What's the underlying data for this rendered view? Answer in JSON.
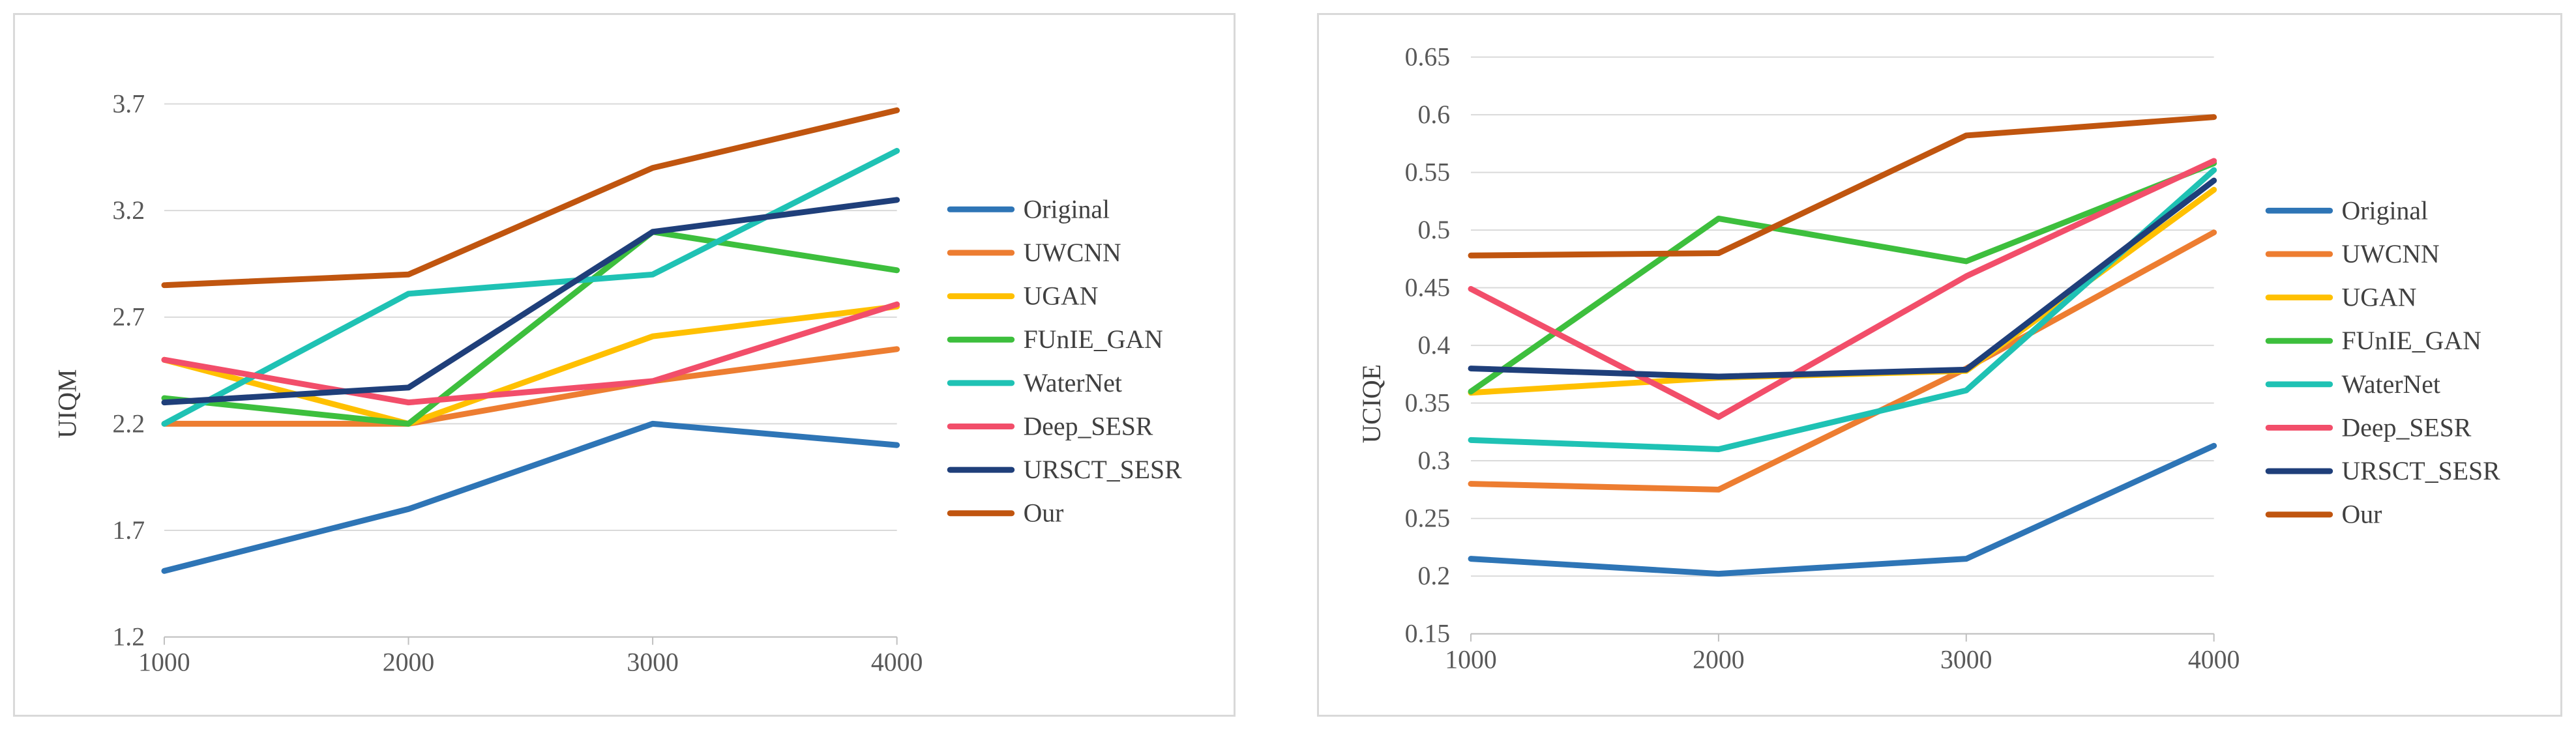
{
  "chart_data": [
    {
      "type": "line",
      "title": "",
      "xlabel": "",
      "ylabel": "UIQM",
      "x": [
        1000,
        2000,
        3000,
        4000
      ],
      "xticks": [
        "1000",
        "2000",
        "3000",
        "4000"
      ],
      "ylim": [
        1.2,
        3.95
      ],
      "yticks": [
        1.2,
        1.7,
        2.2,
        2.7,
        3.2,
        3.7
      ],
      "ytick_labels": [
        "1.2",
        "1.7",
        "2.2",
        "2.7",
        "3.2",
        "3.7"
      ],
      "grid": true,
      "legend_position": "right",
      "series": [
        {
          "name": "Original",
          "color": "#2e75b6",
          "values": [
            1.51,
            1.8,
            2.2,
            2.1
          ]
        },
        {
          "name": "UWCNN",
          "color": "#ed7d31",
          "values": [
            2.2,
            2.2,
            2.4,
            2.55
          ]
        },
        {
          "name": "UGAN",
          "color": "#ffc000",
          "values": [
            2.5,
            2.2,
            2.61,
            2.75
          ]
        },
        {
          "name": "FUnIE_GAN",
          "color": "#3dbf3d",
          "values": [
            2.32,
            2.2,
            3.1,
            2.92
          ]
        },
        {
          "name": "WaterNet",
          "color": "#1fc2b4",
          "values": [
            2.2,
            2.81,
            2.9,
            3.48
          ]
        },
        {
          "name": "Deep_SESR",
          "color": "#f24e6a",
          "values": [
            2.5,
            2.3,
            2.4,
            2.76
          ]
        },
        {
          "name": "URSCT_SESR",
          "color": "#1f3f7a",
          "values": [
            2.3,
            2.37,
            3.1,
            3.25
          ]
        },
        {
          "name": "Our",
          "color": "#c0550f",
          "values": [
            2.85,
            2.9,
            3.4,
            3.67
          ]
        }
      ]
    },
    {
      "type": "line",
      "title": "",
      "xlabel": "",
      "ylabel": "UCIQE",
      "x": [
        1000,
        2000,
        3000,
        4000
      ],
      "xticks": [
        "1000",
        "2000",
        "3000",
        "4000"
      ],
      "ylim": [
        0.15,
        0.65
      ],
      "yticks": [
        0.15,
        0.2,
        0.25,
        0.3,
        0.35,
        0.4,
        0.45,
        0.5,
        0.55,
        0.6,
        0.65
      ],
      "ytick_labels": [
        "0.15",
        "0.2",
        "0.25",
        "0.3",
        "0.35",
        "0.4",
        "0.45",
        "0.5",
        "0.55",
        "0.6",
        "0.65"
      ],
      "grid": true,
      "legend_position": "right",
      "series": [
        {
          "name": "Original",
          "color": "#2e75b6",
          "values": [
            0.215,
            0.202,
            0.215,
            0.313
          ]
        },
        {
          "name": "UWCNN",
          "color": "#ed7d31",
          "values": [
            0.28,
            0.275,
            0.38,
            0.498
          ]
        },
        {
          "name": "UGAN",
          "color": "#ffc000",
          "values": [
            0.359,
            0.372,
            0.378,
            0.535
          ]
        },
        {
          "name": "FUnIE_GAN",
          "color": "#3dbf3d",
          "values": [
            0.36,
            0.51,
            0.473,
            0.558
          ]
        },
        {
          "name": "WaterNet",
          "color": "#1fc2b4",
          "values": [
            0.318,
            0.31,
            0.361,
            0.552
          ]
        },
        {
          "name": "Deep_SESR",
          "color": "#f24e6a",
          "values": [
            0.449,
            0.338,
            0.46,
            0.56
          ]
        },
        {
          "name": "URSCT_SESR",
          "color": "#1f3f7a",
          "values": [
            0.38,
            0.373,
            0.379,
            0.543
          ]
        },
        {
          "name": "Our",
          "color": "#c0550f",
          "values": [
            0.478,
            0.48,
            0.582,
            0.598
          ]
        }
      ]
    }
  ]
}
